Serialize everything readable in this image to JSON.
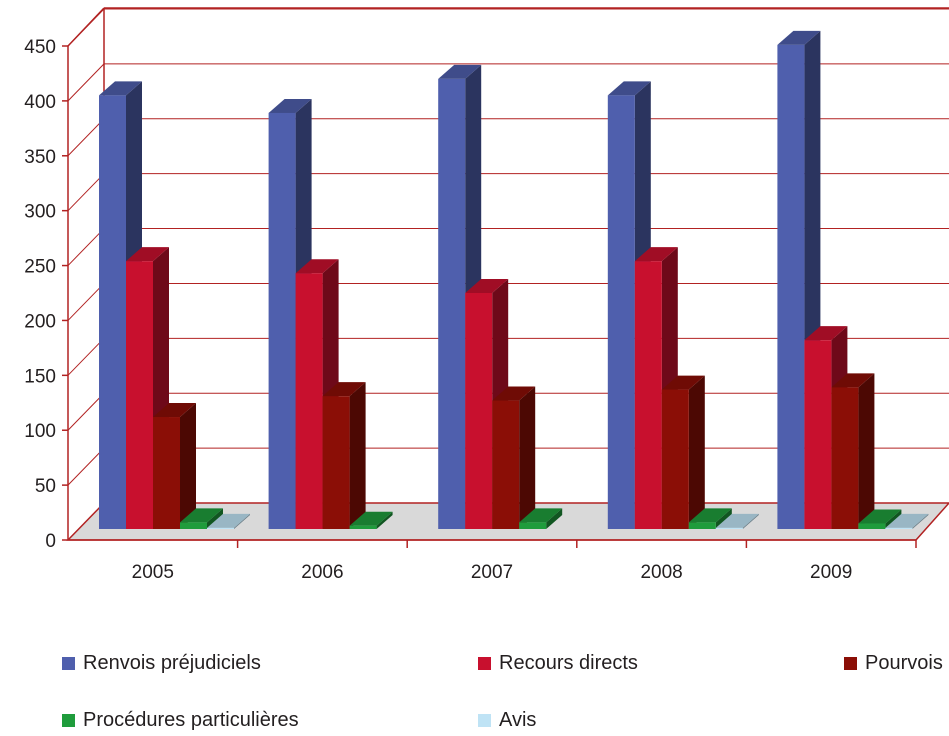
{
  "chart_data": {
    "type": "bar",
    "style": "3d-clustered-column",
    "categories": [
      "2005",
      "2006",
      "2007",
      "2008",
      "2009"
    ],
    "series": [
      {
        "name": "Renvois préjudiciels",
        "values": [
          395,
          379,
          410,
          395,
          441
        ],
        "color": "#4f5fad"
      },
      {
        "name": "Recours directs",
        "values": [
          244,
          233,
          215,
          244,
          172
        ],
        "color": "#c8102e"
      },
      {
        "name": "Pourvois",
        "values": [
          102,
          121,
          117,
          127,
          129
        ],
        "color": "#8b0e06"
      },
      {
        "name": "Procédures particulières",
        "values": [
          6,
          3,
          6,
          6,
          5
        ],
        "color": "#1f9c3c"
      },
      {
        "name": "Avis",
        "values": [
          1,
          0,
          0,
          1,
          1
        ],
        "color": "#bfe3f5"
      }
    ],
    "y_ticks": [
      "0",
      "50",
      "100",
      "150",
      "200",
      "250",
      "300",
      "350",
      "400",
      "450"
    ],
    "ylim": [
      0,
      450
    ],
    "grid": true,
    "legend_position": "bottom"
  }
}
